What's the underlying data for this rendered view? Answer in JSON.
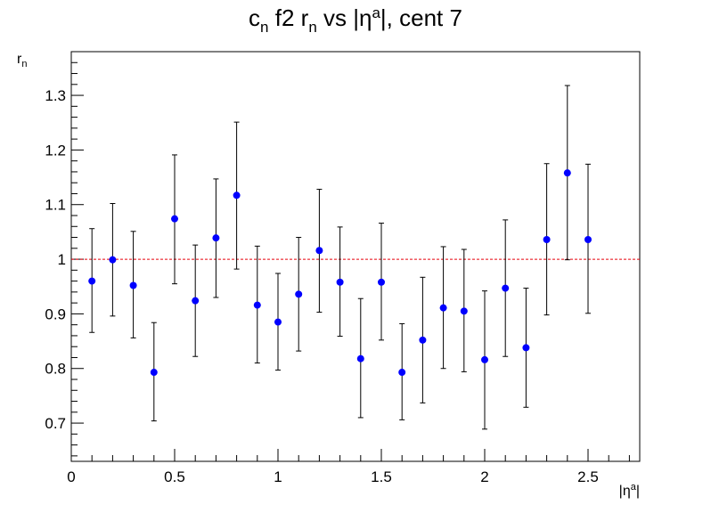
{
  "chart_data": {
    "type": "scatter",
    "title": {
      "main": "c",
      "sub1": "n",
      "mid": " f2 r",
      "sub2": "n",
      "rest": " vs |η",
      "sup": "a",
      "end": "|, cent 7"
    },
    "xlabel": {
      "main": "|η",
      "sup": "a",
      "end": "|"
    },
    "ylabel": {
      "main": "r",
      "sub": "n"
    },
    "xlim": [
      0,
      2.75
    ],
    "ylim": [
      0.63,
      1.38
    ],
    "x_ticks": [
      "0",
      "0.5",
      "1",
      "1.5",
      "2",
      "2.5"
    ],
    "y_ticks": [
      "0.7",
      "0.8",
      "0.9",
      "1",
      "1.1",
      "1.2",
      "1.3"
    ],
    "reference_line": 1.0,
    "reference_color": "#e8000b",
    "marker_color": "#0000ff",
    "series": [
      {
        "x": [
          0.1,
          0.2,
          0.3,
          0.4,
          0.5,
          0.6,
          0.7,
          0.8,
          0.9,
          1.0,
          1.1,
          1.2,
          1.3,
          1.4,
          1.5,
          1.6,
          1.7,
          1.8,
          1.9,
          2.0,
          2.1,
          2.2,
          2.3,
          2.4,
          2.5
        ],
        "y": [
          0.96,
          0.999,
          0.952,
          0.793,
          1.074,
          0.924,
          1.039,
          1.117,
          0.916,
          0.885,
          0.936,
          1.016,
          0.958,
          0.818,
          0.958,
          0.793,
          0.852,
          0.911,
          0.905,
          0.816,
          0.947,
          0.838,
          1.036,
          1.158,
          1.036
        ],
        "yerr_low": [
          0.866,
          0.896,
          0.856,
          0.704,
          0.955,
          0.822,
          0.93,
          0.982,
          0.81,
          0.797,
          0.832,
          0.903,
          0.859,
          0.71,
          0.852,
          0.706,
          0.737,
          0.8,
          0.794,
          0.689,
          0.822,
          0.729,
          0.898,
          0.999,
          0.901
        ],
        "yerr_high": [
          1.056,
          1.102,
          1.051,
          0.884,
          1.191,
          1.026,
          1.147,
          1.251,
          1.024,
          0.974,
          1.04,
          1.128,
          1.059,
          0.928,
          1.066,
          0.882,
          0.967,
          1.023,
          1.018,
          0.942,
          1.072,
          0.947,
          1.175,
          1.318,
          1.174
        ]
      }
    ]
  }
}
